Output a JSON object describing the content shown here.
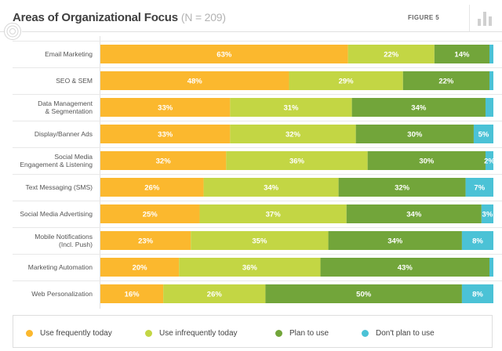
{
  "header": {
    "title": "Areas of Organizational Focus",
    "sample_note": "(N = 209)",
    "figure_label": "FIGURE 5"
  },
  "icons": {
    "header_left": "target-icon",
    "header_right": "bar-chart-icon"
  },
  "colors": {
    "background": "#ffffff",
    "gridline": "#dcdcdc",
    "series": [
      "#fbb82e",
      "#c3d644",
      "#72a53a",
      "#4bc2d6"
    ]
  },
  "chart_data": {
    "type": "bar",
    "orientation": "horizontal",
    "stacked": true,
    "percent_scale": true,
    "grid": true,
    "legend_position": "bottom",
    "categories": [
      "Email Marketing",
      "SEO & SEM",
      "Data Management\n& Segmentation",
      "Display/Banner Ads",
      "Social Media\nEngagement & Listening",
      "Text Messaging (SMS)",
      "Social Media Advertising",
      "Mobile Notifications\n(Incl. Push)",
      "Marketing Automation",
      "Web Personalization"
    ],
    "series": [
      {
        "name": "Use frequently today",
        "color": "#fbb82e",
        "values": [
          63,
          48,
          33,
          33,
          32,
          26,
          25,
          23,
          20,
          16
        ]
      },
      {
        "name": "Use infrequently today",
        "color": "#c3d644",
        "values": [
          22,
          29,
          31,
          32,
          36,
          34,
          37,
          35,
          36,
          26
        ]
      },
      {
        "name": "Plan to use",
        "color": "#72a53a",
        "values": [
          14,
          22,
          34,
          30,
          30,
          32,
          34,
          34,
          43,
          50
        ]
      },
      {
        "name": "Don't plan to use",
        "color": "#4bc2d6",
        "values": [
          1,
          1,
          2,
          5,
          2,
          7,
          3,
          8,
          1,
          8
        ]
      }
    ],
    "data_labels": [
      [
        "63%",
        "22%",
        "14%",
        ""
      ],
      [
        "48%",
        "29%",
        "22%",
        ""
      ],
      [
        "33%",
        "31%",
        "34%",
        ""
      ],
      [
        "33%",
        "32%",
        "30%",
        "5%"
      ],
      [
        "32%",
        "36%",
        "30%",
        "2%"
      ],
      [
        "26%",
        "34%",
        "32%",
        "7%"
      ],
      [
        "25%",
        "37%",
        "34%",
        "3%"
      ],
      [
        "23%",
        "35%",
        "34%",
        "8%"
      ],
      [
        "20%",
        "36%",
        "43%",
        ""
      ],
      [
        "16%",
        "26%",
        "50%",
        "8%"
      ]
    ]
  }
}
